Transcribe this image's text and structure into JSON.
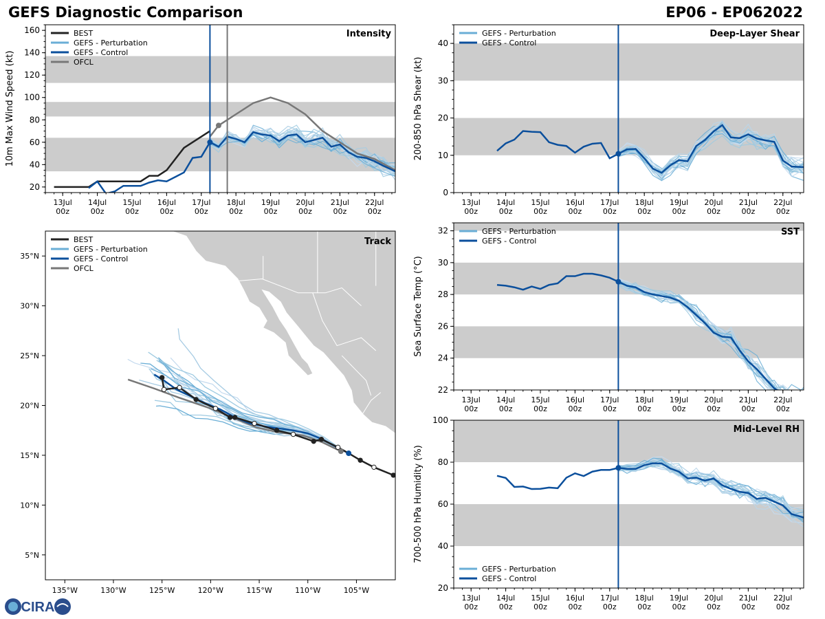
{
  "header": {
    "title": "GEFS Diagnostic Comparison",
    "storm_id": "EP06 - EP062022"
  },
  "logo": {
    "text": "CIRA"
  },
  "colors": {
    "best": "#222222",
    "perturbation": "#6aaed6",
    "control": "#0b4f9c",
    "ofcl": "#777777",
    "band": "#cccccc"
  },
  "legend_labels": {
    "best": "BEST",
    "perturbation": "GEFS - Perturbation",
    "control": "GEFS - Control",
    "ofcl": "OFCL"
  },
  "time_axis": {
    "ticks": [
      13,
      14,
      15,
      16,
      17,
      18,
      19,
      20,
      21,
      22
    ],
    "labels": [
      [
        "13Jul",
        "00z"
      ],
      [
        "14Jul",
        "00z"
      ],
      [
        "15Jul",
        "00z"
      ],
      [
        "16Jul",
        "00z"
      ],
      [
        "17Jul",
        "00z"
      ],
      [
        "18Jul",
        "00z"
      ],
      [
        "19Jul",
        "00z"
      ],
      [
        "20Jul",
        "00z"
      ],
      [
        "21Jul",
        "00z"
      ],
      [
        "22Jul",
        "00z"
      ]
    ],
    "xlim": [
      12.5,
      22.6
    ],
    "init_time": 17.25
  },
  "chart_data": [
    {
      "id": "intensity",
      "type": "line",
      "title": "Intensity",
      "ylabel": "10m Max Wind Speed (kt)",
      "ylim": [
        15,
        165
      ],
      "yticks": [
        20,
        40,
        60,
        80,
        100,
        120,
        140,
        160
      ],
      "bands": [
        [
          34,
          64
        ],
        [
          83,
          96
        ],
        [
          113,
          137
        ]
      ],
      "legend": [
        "best",
        "perturbation",
        "control",
        "ofcl"
      ],
      "best": {
        "x": [
          12.75,
          13.0,
          13.5,
          13.75,
          14.0,
          14.5,
          15.0,
          15.25,
          15.5,
          15.75,
          16.0,
          16.5,
          17.0,
          17.25
        ],
        "y": [
          20,
          20,
          20,
          20,
          25,
          25,
          25,
          25,
          30,
          30,
          35,
          55,
          65,
          70
        ]
      },
      "control": {
        "x": [
          13.75,
          14.0,
          14.25,
          14.5,
          14.75,
          15.0,
          15.25,
          15.5,
          15.75,
          16.0,
          16.25,
          16.5,
          16.75,
          17.0,
          17.25,
          17.5,
          17.75,
          18.0,
          18.25,
          18.5,
          18.75,
          19.0,
          19.25,
          19.5,
          19.75,
          20.0,
          20.25,
          20.5,
          20.75,
          21.0,
          21.25,
          21.5,
          21.75,
          22.0,
          22.25,
          22.6
        ],
        "y": [
          19,
          25,
          14,
          16,
          21,
          21,
          21,
          24,
          26,
          25,
          29,
          33,
          46,
          47,
          60,
          56,
          65,
          63,
          60,
          69,
          67,
          66,
          61,
          66,
          67,
          60,
          62,
          64,
          56,
          58,
          51,
          47,
          46,
          43,
          39,
          34
        ]
      },
      "ofcl": {
        "x": [
          17.25,
          17.5,
          18.0,
          18.5,
          19.0,
          19.5,
          20.0,
          20.5,
          21.0,
          21.5,
          22.0,
          22.6
        ],
        "y": [
          65,
          75,
          85,
          95,
          100,
          95,
          85,
          70,
          60,
          50,
          45,
          35
        ]
      },
      "marker": {
        "x": 17.25,
        "y": 60
      }
    },
    {
      "id": "shear",
      "type": "line",
      "title": "Deep-Layer Shear",
      "ylabel": "200-850 hPa Shear (kt)",
      "ylim": [
        0,
        45
      ],
      "yticks": [
        0,
        10,
        20,
        30,
        40
      ],
      "bands": [
        [
          10,
          20
        ],
        [
          30,
          40
        ]
      ],
      "legend": [
        "perturbation",
        "control"
      ],
      "control": {
        "x": [
          13.75,
          14.0,
          14.25,
          14.5,
          14.75,
          15.0,
          15.25,
          15.5,
          15.75,
          16.0,
          16.25,
          16.5,
          16.75,
          17.0,
          17.25,
          17.5,
          17.75,
          18.0,
          18.25,
          18.5,
          18.75,
          19.0,
          19.25,
          19.5,
          19.75,
          20.0,
          20.25,
          20.5,
          20.75,
          21.0,
          21.25,
          21.5,
          21.75,
          22.0,
          22.25,
          22.6
        ],
        "y": [
          11.2,
          13.2,
          14.2,
          16.5,
          16.3,
          16.2,
          13.5,
          12.8,
          12.5,
          10.7,
          12.3,
          13.1,
          13.3,
          9.2,
          10.4,
          11.6,
          11.7,
          9.2,
          6.4,
          5.3,
          7.3,
          8.7,
          8.4,
          12.5,
          14.1,
          16.4,
          18.1,
          14.8,
          14.6,
          15.6,
          14.5,
          14.0,
          13.6,
          8.6,
          7.0,
          6.8
        ]
      },
      "marker": {
        "x": 17.25,
        "y": 10.4
      }
    },
    {
      "id": "sst",
      "type": "line",
      "title": "SST",
      "ylabel": "Sea Surface Temp (°C)",
      "ylim": [
        22,
        32.5
      ],
      "yticks": [
        22,
        24,
        26,
        28,
        30,
        32
      ],
      "bands": [
        [
          24,
          26
        ],
        [
          28,
          30
        ],
        [
          32,
          34
        ]
      ],
      "legend": [
        "perturbation",
        "control"
      ],
      "control": {
        "x": [
          13.75,
          14.0,
          14.25,
          14.5,
          14.75,
          15.0,
          15.25,
          15.5,
          15.75,
          16.0,
          16.25,
          16.5,
          16.75,
          17.0,
          17.25,
          17.5,
          17.75,
          18.0,
          18.25,
          18.5,
          18.75,
          19.0,
          19.25,
          19.5,
          19.75,
          20.0,
          20.25,
          20.5,
          20.75,
          21.0,
          21.25,
          21.5,
          21.75,
          22.0,
          22.25,
          22.6
        ],
        "y": [
          28.6,
          28.55,
          28.45,
          28.3,
          28.5,
          28.35,
          28.6,
          28.7,
          29.15,
          29.15,
          29.3,
          29.3,
          29.2,
          29.05,
          28.8,
          28.55,
          28.45,
          28.15,
          28.0,
          27.9,
          27.8,
          27.6,
          27.2,
          26.7,
          26.2,
          25.6,
          25.35,
          25.3,
          24.5,
          23.8,
          23.3,
          22.7,
          22.1,
          21.8,
          21.6,
          21.5
        ]
      },
      "marker": {
        "x": 17.25,
        "y": 28.8
      }
    },
    {
      "id": "rh",
      "type": "line",
      "title": "Mid-Level RH",
      "ylabel": "700-500 hPa Humidity (%)",
      "ylim": [
        20,
        100
      ],
      "yticks": [
        20,
        40,
        60,
        80,
        100
      ],
      "bands": [
        [
          40,
          60
        ],
        [
          80,
          100
        ]
      ],
      "legend": [
        "perturbation",
        "control"
      ],
      "control": {
        "x": [
          13.75,
          14.0,
          14.25,
          14.5,
          14.75,
          15.0,
          15.25,
          15.5,
          15.75,
          16.0,
          16.25,
          16.5,
          16.75,
          17.0,
          17.25,
          17.5,
          17.75,
          18.0,
          18.25,
          18.5,
          18.75,
          19.0,
          19.25,
          19.5,
          19.75,
          20.0,
          20.25,
          20.5,
          20.75,
          21.0,
          21.25,
          21.5,
          21.75,
          22.0,
          22.25,
          22.6
        ],
        "y": [
          73.5,
          72.5,
          68.2,
          68.4,
          67.2,
          67.3,
          67.9,
          67.6,
          72.6,
          74.7,
          73.4,
          75.5,
          76.3,
          76.3,
          77.3,
          76.8,
          76.8,
          78.6,
          79.5,
          79.4,
          77.0,
          75.5,
          72.3,
          72.6,
          71.2,
          72.2,
          69.0,
          67.3,
          65.9,
          65.3,
          62.5,
          63.0,
          61.2,
          59.4,
          55.3,
          53.6
        ]
      },
      "marker": {
        "x": 17.25,
        "y": 77.3
      }
    },
    {
      "id": "track",
      "type": "scatter",
      "title": "Track",
      "lon_range": [
        -137,
        -101
      ],
      "lat_range": [
        2.5,
        37.5
      ],
      "xticks": [
        -135,
        -130,
        -125,
        -120,
        -115,
        -110,
        -105
      ],
      "xtick_labels": [
        "135°W",
        "130°W",
        "125°W",
        "120°W",
        "115°W",
        "110°W",
        "105°W"
      ],
      "yticks": [
        5,
        10,
        15,
        20,
        25,
        30,
        35
      ],
      "ytick_labels": [
        "5°N",
        "10°N",
        "15°N",
        "20°N",
        "25°N",
        "30°N",
        "35°N"
      ],
      "legend": [
        "best",
        "perturbation",
        "control",
        "ofcl"
      ],
      "best": {
        "lon": [
          -101.2,
          -103.2,
          -104.6,
          -105.8,
          -106.9,
          -108.6,
          -109.4,
          -111.5,
          -113.2,
          -115.5,
          -117.5,
          -118.0,
          -119.5,
          -121.5,
          -123.2,
          -124.8,
          -125.0
        ],
        "lat": [
          13.0,
          13.8,
          14.5,
          15.2,
          15.8,
          16.6,
          16.4,
          17.1,
          17.5,
          18.2,
          18.8,
          18.8,
          19.7,
          20.6,
          21.8,
          21.6,
          22.8
        ],
        "filled": [
          true,
          false,
          true,
          false,
          false,
          true,
          true,
          false,
          true,
          false,
          true,
          true,
          false,
          true,
          false,
          false,
          true
        ]
      },
      "control": {
        "lon": [
          -105.8,
          -107.0,
          -108.5,
          -110.0,
          -111.5,
          -113.0,
          -114.5,
          -116.0,
          -117.5,
          -119.0,
          -120.5,
          -122.0,
          -123.5,
          -124.8,
          -125.8
        ],
        "lat": [
          15.2,
          15.8,
          16.6,
          17.2,
          17.5,
          17.7,
          17.9,
          18.2,
          18.8,
          19.6,
          20.2,
          20.9,
          21.6,
          22.5,
          23.1
        ]
      },
      "ofcl": {
        "lon": [
          -106.6,
          -108.5,
          -110.5,
          -113.0,
          -115.3,
          -117.8,
          -120.3,
          -123.3,
          -125.8,
          -128.5
        ],
        "lat": [
          15.4,
          16.3,
          17.0,
          17.3,
          17.8,
          18.8,
          19.8,
          20.8,
          21.7,
          22.6
        ]
      }
    }
  ]
}
